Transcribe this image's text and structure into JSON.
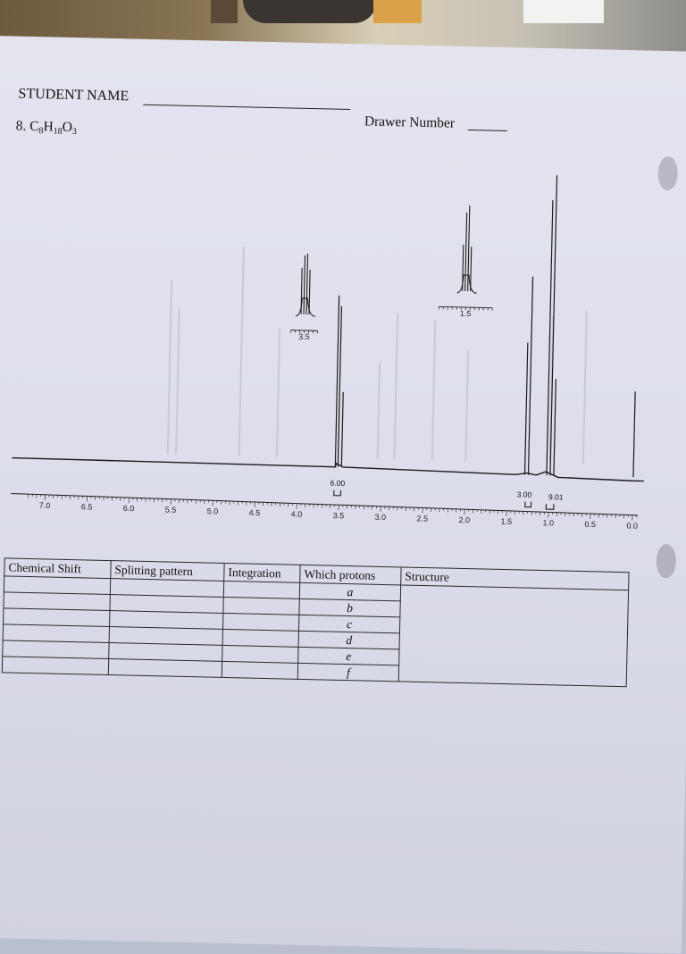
{
  "header": {
    "student_name_label": "STUDENT NAME",
    "drawer_number_label": "Drawer Number",
    "problem_number": "8.",
    "formula": {
      "C": "C",
      "C_sub": "8",
      "H": "H",
      "H_sub": "18",
      "O": "O",
      "O_sub": "3"
    }
  },
  "spectrum": {
    "axis_ticks": [
      "7.0",
      "6.5",
      "6.0",
      "5.5",
      "5.0",
      "4.5",
      "4.0",
      "3.5",
      "3.0",
      "2.5",
      "2.0",
      "1.5",
      "1.0",
      "0.5",
      "0.0"
    ],
    "integrations": [
      "6.00",
      "3.00",
      "9.01"
    ],
    "inset_labels": [
      "3.5",
      "1.5"
    ],
    "peaks_ppm": [
      3.52,
      1.22,
      0.98,
      0.0
    ],
    "colors": {
      "ink": "#1a1a1a",
      "faded_bleed": "#c7c9d6"
    }
  },
  "table": {
    "headers": [
      "Chemical Shift",
      "Splitting pattern",
      "Integration",
      "Which protons",
      "Structure"
    ],
    "protons": [
      "a",
      "b",
      "c",
      "d",
      "e",
      "f"
    ]
  }
}
